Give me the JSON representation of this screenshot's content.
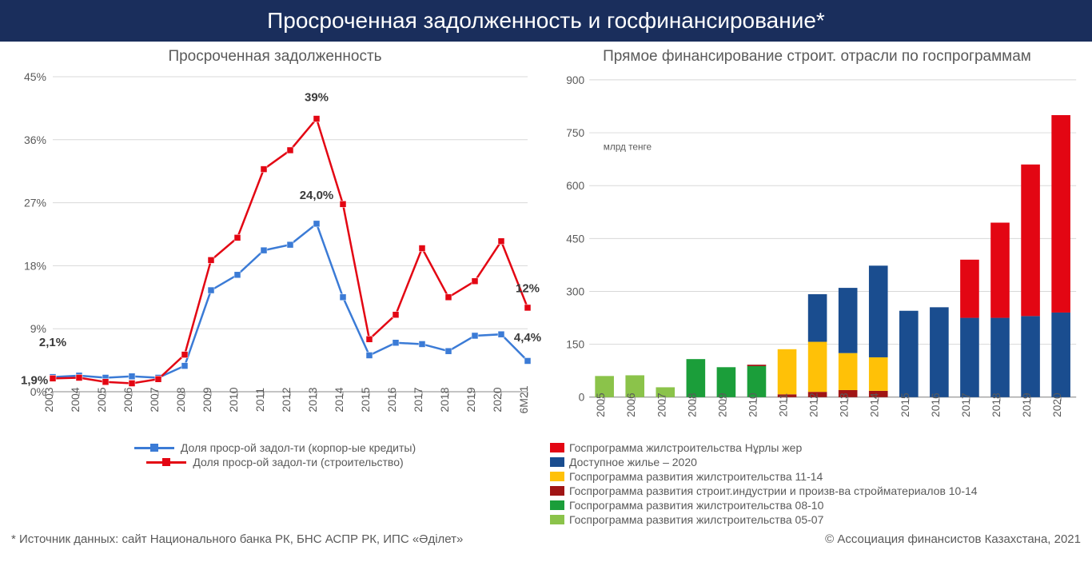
{
  "header": {
    "title": "Просроченная задолженность и госфинансирование*"
  },
  "footer": {
    "source": "* Источник данных: сайт Национального банка РК, БНС АСПР РК, ИПС «Әділет»",
    "copyright": "© Ассоциация финансистов Казахстана, 2021"
  },
  "chart_left": {
    "title": "Просроченная задолженность",
    "type": "line",
    "x_labels": [
      "2003",
      "2004",
      "2005",
      "2006",
      "2007",
      "2008",
      "2009",
      "2010",
      "2011",
      "2012",
      "2013",
      "2014",
      "2015",
      "2016",
      "2017",
      "2018",
      "2019",
      "2020",
      "6M21"
    ],
    "ylim": [
      0,
      45
    ],
    "ytick_step": 9,
    "y_ticks": [
      0,
      9,
      18,
      27,
      36,
      45
    ],
    "y_tick_labels": [
      "0%",
      "9%",
      "18%",
      "27%",
      "36%",
      "45%"
    ],
    "series": [
      {
        "name": "Доля проср-ой задол-ти (корпор-ые кредиты)",
        "color": "#3b7bd6",
        "marker": "square",
        "line_width": 2.5,
        "values": [
          2.1,
          2.3,
          2.0,
          2.2,
          2.0,
          3.7,
          14.5,
          16.7,
          20.2,
          21.0,
          24.0,
          13.5,
          5.2,
          7.0,
          6.8,
          5.8,
          8.0,
          8.2,
          4.4
        ]
      },
      {
        "name": "Доля проср-ой задол-ти (строительство)",
        "color": "#e30613",
        "marker": "square",
        "line_width": 2.5,
        "values": [
          1.9,
          2.0,
          1.4,
          1.2,
          1.8,
          5.3,
          18.8,
          22.0,
          31.8,
          34.5,
          39.0,
          26.8,
          7.5,
          11.0,
          20.5,
          13.5,
          15.8,
          21.5,
          12.0
        ]
      }
    ],
    "annotations": [
      {
        "text": "2,1%",
        "x_idx": 0,
        "y": 6.5
      },
      {
        "text": "1,9%",
        "x_idx": 0,
        "y": 2.8,
        "align": "start",
        "dx": -40,
        "dy": 15
      },
      {
        "text": "24,0%",
        "x_idx": 10,
        "y": 27.5
      },
      {
        "text": "39%",
        "x_idx": 10,
        "y": 41.5
      },
      {
        "text": "4,4%",
        "x_idx": 18,
        "y": 7.2
      },
      {
        "text": "12%",
        "x_idx": 18,
        "y": 14.2
      }
    ],
    "grid_color": "#d8d8d8",
    "background_color": "#ffffff"
  },
  "chart_right": {
    "title": "Прямое финансирование строит. отрасли по госпрограммам",
    "type": "stacked_bar",
    "unit_label": "млрд тенге",
    "x_labels": [
      "2005",
      "2006",
      "2007",
      "2008",
      "2009",
      "2010",
      "2011",
      "2012",
      "2013",
      "2014",
      "2015",
      "2016",
      "2017",
      "2018",
      "2019",
      "2020"
    ],
    "ylim": [
      0,
      900
    ],
    "ytick_step": 150,
    "y_ticks": [
      0,
      150,
      300,
      450,
      600,
      750,
      900
    ],
    "y_tick_labels": [
      "0",
      "150",
      "300",
      "450",
      "600",
      "750",
      "900"
    ],
    "bar_width": 0.62,
    "stacks": [
      {
        "key": "p0507",
        "name": "Госпрограмма развития жилстроительства 05-07",
        "color": "#8bc34a"
      },
      {
        "key": "p0810",
        "name": "Госпрограмма развития жилстроительства 08-10",
        "color": "#1b9e3a"
      },
      {
        "key": "pind",
        "name": "Госпрограмма развития строит.индустрии и произв-ва стройматериалов 10-14",
        "color": "#a01515"
      },
      {
        "key": "p1114",
        "name": "Госпрограмма развития жилстроительства 11-14",
        "color": "#ffc107"
      },
      {
        "key": "dz2020",
        "name": "Доступное жилье – 2020",
        "color": "#1a4d8f"
      },
      {
        "key": "nurly",
        "name": "Госпрограмма жилстроительства Нұрлы жер",
        "color": "#e30613"
      }
    ],
    "legend_order": [
      "nurly",
      "dz2020",
      "p1114",
      "pind",
      "p0810",
      "p0507"
    ],
    "data": {
      "p0507": [
        60,
        62,
        28,
        0,
        0,
        0,
        0,
        0,
        0,
        0,
        0,
        0,
        0,
        0,
        0,
        0
      ],
      "p0810": [
        0,
        0,
        0,
        108,
        85,
        88,
        0,
        0,
        0,
        0,
        0,
        0,
        0,
        0,
        0,
        0
      ],
      "pind": [
        0,
        0,
        0,
        0,
        0,
        4,
        8,
        15,
        20,
        18,
        0,
        0,
        0,
        0,
        0,
        0
      ],
      "p1114": [
        0,
        0,
        0,
        0,
        0,
        0,
        128,
        142,
        105,
        95,
        0,
        0,
        0,
        0,
        0,
        0
      ],
      "dz2020": [
        0,
        0,
        0,
        0,
        0,
        0,
        0,
        135,
        185,
        260,
        245,
        255,
        225,
        225,
        230,
        240
      ],
      "nurly": [
        0,
        0,
        0,
        0,
        0,
        0,
        0,
        0,
        0,
        0,
        0,
        0,
        165,
        270,
        430,
        560
      ]
    },
    "grid_color": "#d8d8d8",
    "background_color": "#ffffff"
  }
}
